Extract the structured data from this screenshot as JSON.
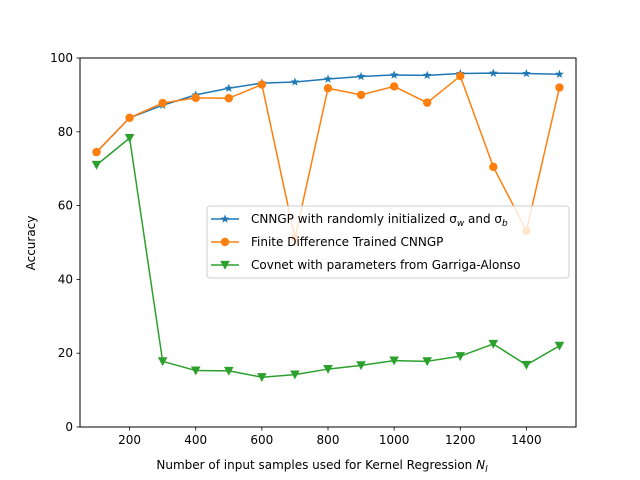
{
  "chart_data": {
    "type": "line",
    "title": "",
    "xlabel": "Number of input samples used for Kernel Regression",
    "xlabel_symbol": "N",
    "xlabel_subscript": "l",
    "ylabel": "Accuracy",
    "xlim": [
      50,
      1550
    ],
    "ylim": [
      0,
      100
    ],
    "xticks": [
      200,
      400,
      600,
      800,
      1000,
      1200,
      1400
    ],
    "yticks": [
      0,
      20,
      40,
      60,
      80,
      100
    ],
    "grid": false,
    "legend_position": "center-right",
    "x": [
      100,
      200,
      300,
      400,
      500,
      600,
      700,
      800,
      900,
      1000,
      1100,
      1200,
      1300,
      1400,
      1500
    ],
    "series": [
      {
        "name": "CNNGP with randomly initialized σ",
        "name_sub1": "w",
        "name_mid": " and σ",
        "name_sub2": "b",
        "color": "#1f77b4",
        "marker": "star",
        "values": [
          74.5,
          83.8,
          87.2,
          90.0,
          91.8,
          93.2,
          93.5,
          94.3,
          95.0,
          95.4,
          95.3,
          95.8,
          95.9,
          95.8,
          95.6
        ]
      },
      {
        "name": "Finite Difference Trained CNNGP",
        "color": "#ff7f0e",
        "marker": "circle",
        "values": [
          74.5,
          83.8,
          87.8,
          89.2,
          89.1,
          92.8,
          51.2,
          91.8,
          90.0,
          92.3,
          87.9,
          95.1,
          70.5,
          53.2,
          92.0
        ]
      },
      {
        "name": "Covnet with parameters from Garriga-Alonso",
        "color": "#2ca02c",
        "marker": "triangle-down",
        "values": [
          71.0,
          78.3,
          17.8,
          15.3,
          15.2,
          13.5,
          14.2,
          15.7,
          16.7,
          18.0,
          17.8,
          19.2,
          22.5,
          16.8,
          22.0
        ]
      }
    ]
  }
}
